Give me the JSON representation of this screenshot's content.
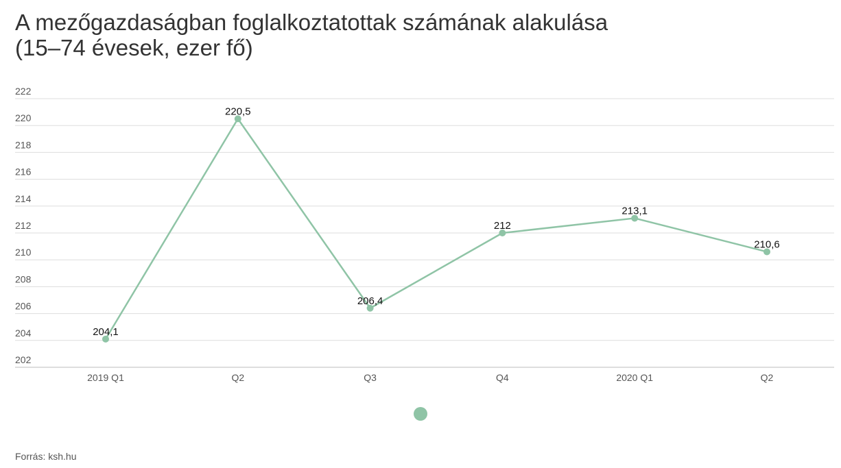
{
  "chart_data": {
    "type": "line",
    "title": "A mezőgazdaságban foglalkoztatottak számának alakulása",
    "subtitle": "(15–74 évesek, ezer fő)",
    "categories": [
      "2019 Q1",
      "Q2",
      "Q3",
      "Q4",
      "2020 Q1",
      "Q2"
    ],
    "series": [
      {
        "values": [
          204.1,
          220.5,
          206.4,
          212,
          213.1,
          210.6
        ],
        "labels": [
          "204,1",
          "220,5",
          "206,4",
          "212",
          "213,1",
          "210,6"
        ],
        "color": "#8fc4a6"
      }
    ],
    "ylim": [
      202,
      222
    ],
    "yticks": [
      "222",
      "220",
      "218",
      "216",
      "214",
      "212",
      "210",
      "208",
      "206",
      "204",
      "202"
    ],
    "grid": true,
    "legend": "bottom-center"
  },
  "source": "Forrás: ksh.hu",
  "colors": {
    "line": "#8fc4a6",
    "grid": "#dddddd",
    "text": "#333333"
  }
}
